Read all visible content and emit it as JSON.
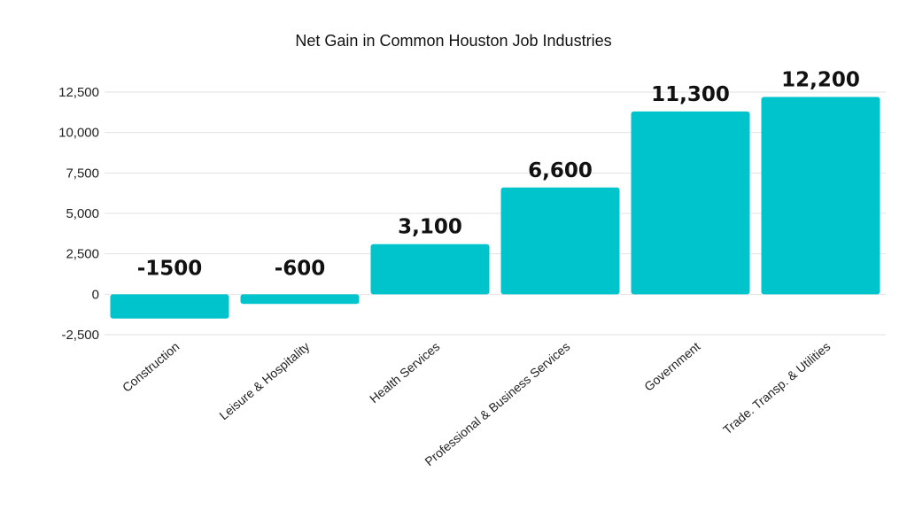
{
  "chart_data": {
    "type": "bar",
    "title": "Net Gain in Common Houston Job Industries",
    "xlabel": "",
    "ylabel": "",
    "categories": [
      "Construction",
      "Leisure & Hospitality",
      "Health Services",
      "Professional & Business Services",
      "Government",
      "Trade. Transp. & Utilities"
    ],
    "values": [
      -1500,
      -600,
      3100,
      6600,
      11300,
      12200
    ],
    "data_labels": [
      "-1500",
      "-600",
      "3,100",
      "6,600",
      "11,300",
      "12,200"
    ],
    "ylim": [
      -2500,
      12500
    ],
    "yticks": [
      12500,
      10000,
      7500,
      5000,
      2500,
      0,
      -2500
    ],
    "ytick_labels": [
      "12,500",
      "10,000",
      "7,500",
      "5,000",
      "2,500",
      "0",
      "-2,500"
    ],
    "grid": true,
    "legend": "none",
    "bar_color": "#00C4CC"
  }
}
